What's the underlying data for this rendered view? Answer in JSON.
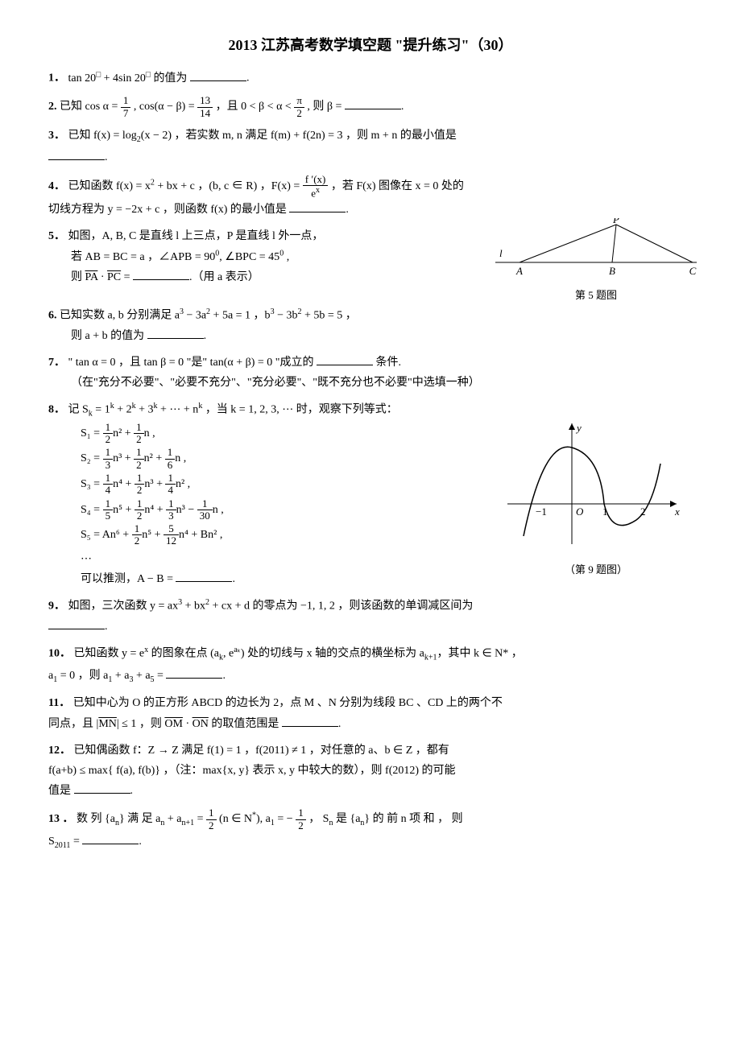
{
  "title": "2013 江苏高考数学填空题 \"提升练习\"（30）",
  "p1": {
    "num": "1．",
    "text_a": "tan 20",
    "sup_a": "□",
    "text_b": " + 4sin 20",
    "sup_b": "□",
    "text_c": " 的值为",
    "tail": "."
  },
  "p2": {
    "num": "2.",
    "text_a": "已知 cos α = ",
    "f1t": "1",
    "f1b": "7",
    "text_b": ", cos(α − β) = ",
    "f2t": "13",
    "f2b": "14",
    "text_c": " ，且 0 < β < α < ",
    "f3t": "π",
    "f3b": "2",
    "text_d": ", 则 β = ",
    "tail": "."
  },
  "p3": {
    "num": "3．",
    "text_a": "已知 f(x) = log",
    "sub": "2",
    "text_b": "(x − 2) ，若实数 m, n 满足 f(m) + f(2n) = 3 ，则 m + n 的最小值是",
    "tail": "."
  },
  "p4": {
    "num": "4．",
    "text_a": "已知函数 f(x) = x",
    "sup": "2",
    "text_b": " + bx + c ，(b, c ∈ R) ，F(x) = ",
    "ft": "f ′(x)",
    "fb": "e",
    "fbx": "x",
    "text_c": " ，若 F(x) 图像在 x = 0 处的",
    "line2": "切线方程为 y = −2x + c ，则函数 f(x) 的最小值是",
    "tail": "."
  },
  "p5": {
    "num": "5．",
    "text_a": "如图，A, B, C 是直线 l 上三点，P 是直线 l 外一点，",
    "line2_a": "若 AB = BC = a ，∠APB = 90",
    "sup": "0",
    "line2_b": ", ∠BPC = 45",
    "sup2": "0",
    "line2_c": " ,",
    "line3_a": "则 ",
    "vec1": "PA",
    "dot": " · ",
    "vec2": "PC",
    "eq": " = ",
    "tail": ".（用 a 表示）",
    "figcap": "第 5 题图",
    "fig": {
      "P": "P",
      "A": "A",
      "B": "B",
      "C": "C",
      "l": "l",
      "line_color": "#000"
    }
  },
  "p6": {
    "num": "6.",
    "text_a": "已知实数 a, b 分别满足 a",
    "sup1": "3",
    "text_b": " − 3a",
    "sup2": "2",
    "text_c": " + 5a = 1 ，b",
    "sup3": "3",
    "text_d": " − 3b",
    "sup4": "2",
    "text_e": " + 5b = 5 ，",
    "line2": "则 a + b 的值为",
    "tail": "."
  },
  "p7": {
    "num": "7．",
    "text_a": "\" tan α = 0 ，且 tan β = 0 \"是\" tan(α + β) = 0 \"成立的",
    "text_b": "条件.",
    "line2": "（在\"充分不必要\"、\"必要不充分\"、\"充分必要\"、\"既不充分也不必要\"中选填一种）"
  },
  "p8": {
    "num": "8．",
    "text_a": "记 S",
    "sub_k": "k",
    "text_b": " = 1",
    "sup_k": "k",
    "text_c": " + 2",
    "text_d": " + 3",
    "text_e": " + ⋯ + n",
    "text_f": " ，当 k = 1, 2, 3, ⋯ 时，观察下列等式：",
    "eqs": [
      {
        "lhs": "S₁ = ",
        "terms": [
          {
            "t": "1",
            "b": "2",
            "p": "n²"
          },
          {
            "op": " + ",
            "t": "1",
            "b": "2",
            "p": "n"
          }
        ],
        "tail": " ,"
      },
      {
        "lhs": "S₂ = ",
        "terms": [
          {
            "t": "1",
            "b": "3",
            "p": "n³"
          },
          {
            "op": " + ",
            "t": "1",
            "b": "2",
            "p": "n²"
          },
          {
            "op": " + ",
            "t": "1",
            "b": "6",
            "p": "n"
          }
        ],
        "tail": " ,"
      },
      {
        "lhs": "S₃ = ",
        "terms": [
          {
            "t": "1",
            "b": "4",
            "p": "n⁴"
          },
          {
            "op": " + ",
            "t": "1",
            "b": "2",
            "p": "n³"
          },
          {
            "op": " + ",
            "t": "1",
            "b": "4",
            "p": "n²"
          }
        ],
        "tail": " ,"
      },
      {
        "lhs": "S₄ = ",
        "terms": [
          {
            "t": "1",
            "b": "5",
            "p": "n⁵"
          },
          {
            "op": " + ",
            "t": "1",
            "b": "2",
            "p": "n⁴"
          },
          {
            "op": " + ",
            "t": "1",
            "b": "3",
            "p": "n³"
          },
          {
            "op": " − ",
            "t": "1",
            "b": "30",
            "p": "n"
          }
        ],
        "tail": " ,"
      },
      {
        "lhs": "S₅ = ",
        "pre": "An⁶ + ",
        "terms": [
          {
            "t": "1",
            "b": "2",
            "p": "n⁵"
          },
          {
            "op": " + ",
            "t": "5",
            "b": "12",
            "p": "n⁴"
          }
        ],
        "post": " + Bn²",
        "tail": " ,"
      }
    ],
    "dots": "⋯",
    "concl_a": "可以推测，A − B = ",
    "tail": "."
  },
  "p9": {
    "num": "9．",
    "text_a": "如图，三次函数 y = ax",
    "sup": "3",
    "text_b": " + bx",
    "sup2": "2",
    "text_c": " + cx + d 的零点为 −1, 1, 2 ，则该函数的单调减区间为",
    "tail": ".",
    "figcap": "（第 9 题图）",
    "fig": {
      "y": "y",
      "x": "x",
      "O": "O",
      "m1": "−1",
      "p1": "1",
      "p2": "2",
      "stroke": "#000",
      "axis": "#000"
    }
  },
  "p10": {
    "num": "10．",
    "text_a": "已知函数 y = e",
    "sup": "x",
    "text_b": " 的图象在点 (a",
    "sub_k": "k",
    "text_c": ", e",
    "sup_ak": "aₖ",
    "text_d": ") 处的切线与 x 轴的交点的横坐标为 a",
    "sub_k1": "k+1",
    "text_e": "，其中 k ∈ N* ，",
    "line2_a": "a",
    "sub1": "1",
    "line2_b": " = 0 ，则 a",
    "line2_c": " + a",
    "sub3": "3",
    "line2_d": " + a",
    "sub5": "5",
    "line2_e": " = ",
    "tail": "."
  },
  "p11": {
    "num": "11．",
    "text_a": "已知中心为 O 的正方形 ABCD 的边长为 2，点 M 、N 分别为线段 BC 、CD 上的两个不",
    "line2_a": "同点，且 |",
    "vec1": "MN",
    "line2_b": "| ≤ 1 ，则 ",
    "vec2": "OM",
    "dot": " · ",
    "vec3": "ON",
    "line2_c": " 的取值范围是",
    "tail": "."
  },
  "p12": {
    "num": "12．",
    "text_a": "已知偶函数 f：Z → Z 满足 f(1) = 1 ，f(2011) ≠ 1 ，对任意的 a、b ∈ Z ，都有",
    "line2": "f(a+b) ≤ max{ f(a), f(b)} ，（注：max{x, y} 表示 x, y 中较大的数），则 f(2012) 的可能",
    "line3": "值是",
    "tail": "."
  },
  "p13": {
    "num": "13 ．",
    "text_a": "数 列 {a",
    "sub_n": "n",
    "text_b": "} 满 足 a",
    "text_c": " + a",
    "sub_n1": "n+1",
    "text_d": " = ",
    "f1t": "1",
    "f1b": "2",
    "text_e": "(n ∈ N",
    "sup": "*",
    "text_f": "), a",
    "sub1": "1",
    "text_g": " = −",
    "f2t": "1",
    "f2b": "2",
    "text_h": " ， S",
    "text_i": " 是 {a",
    "text_j": "} 的 前 n 项 和 ， 则",
    "line2_a": "S",
    "sub2011": "2011",
    "line2_b": " = ",
    "tail": "."
  }
}
